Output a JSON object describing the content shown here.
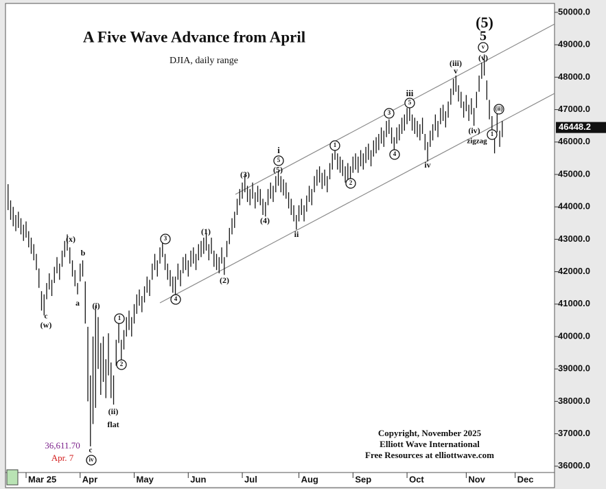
{
  "chart_data": {
    "type": "range-bar",
    "title": "A Five Wave Advance from April",
    "subtitle": "DJIA, daily range",
    "color": "#111111",
    "xlim": [
      -1,
      212.3
    ],
    "xticks": [
      {
        "value": 7,
        "label": "Mar 25"
      },
      {
        "value": 28,
        "label": "Apr"
      },
      {
        "value": 49,
        "label": "May"
      },
      {
        "value": 70,
        "label": "Jun"
      },
      {
        "value": 91,
        "label": "Jul"
      },
      {
        "value": 113,
        "label": "Aug"
      },
      {
        "value": 134,
        "label": "Sep"
      },
      {
        "value": 155,
        "label": "Oct"
      },
      {
        "value": 178,
        "label": "Nov"
      },
      {
        "value": 197,
        "label": "Dec"
      }
    ],
    "ylim": [
      35805,
      50275
    ],
    "yticks": [
      {
        "value": 36000,
        "label": "36000.0"
      },
      {
        "value": 37000,
        "label": "37000.0"
      },
      {
        "value": 38000,
        "label": "38000.0"
      },
      {
        "value": 39000,
        "label": "39000.0"
      },
      {
        "value": 40000,
        "label": "40000.0"
      },
      {
        "value": 41000,
        "label": "41000.0"
      },
      {
        "value": 42000,
        "label": "42000.0"
      },
      {
        "value": 43000,
        "label": "43000.0"
      },
      {
        "value": 44000,
        "label": "44000.0"
      },
      {
        "value": 45000,
        "label": "45000.0"
      },
      {
        "value": 46000,
        "label": "46000.0"
      },
      {
        "value": 47000,
        "label": "47000.0"
      },
      {
        "value": 48000,
        "label": "48000.0"
      },
      {
        "value": 49000,
        "label": "49000.0"
      },
      {
        "value": 50000,
        "label": "50000.0"
      }
    ],
    "last_price": 46448.2,
    "low": [
      43900,
      43600,
      43400,
      43250,
      43350,
      43150,
      42950,
      43050,
      42750,
      42550,
      42350,
      42050,
      41500,
      40800,
      40650,
      41150,
      41450,
      41250,
      41650,
      41950,
      41750,
      42150,
      42450,
      42650,
      42250,
      41850,
      41550,
      41300,
      41700,
      41850,
      40400,
      38000,
      36611.7,
      37300,
      37800,
      39000,
      38200,
      38600,
      38100,
      38800,
      38100,
      37900,
      39100,
      39800,
      39200,
      39600,
      40000,
      40200,
      40000,
      40400,
      40700,
      40950,
      40750,
      41050,
      41350,
      41250,
      41750,
      42050,
      41850,
      42250,
      42450,
      42050,
      41750,
      41550,
      41350,
      41300,
      41750,
      41550,
      41950,
      42050,
      41850,
      42150,
      42250,
      42050,
      42350,
      42450,
      42550,
      42650,
      42350,
      42550,
      42150,
      42050,
      41950,
      42250,
      41900,
      42450,
      42850,
      43150,
      43350,
      43750,
      44050,
      44250,
      44450,
      44150,
      44050,
      44250,
      43950,
      44150,
      44050,
      43750,
      43700,
      44050,
      44250,
      44150,
      44450,
      44650,
      44450,
      44350,
      44250,
      43950,
      43750,
      43550,
      43300,
      43550,
      43750,
      43550,
      43850,
      44150,
      44050,
      44450,
      44650,
      44750,
      44550,
      44650,
      44450,
      44850,
      45150,
      45450,
      45150,
      45050,
      44950,
      44750,
      44850,
      44800,
      45050,
      45150,
      45050,
      45250,
      45150,
      45350,
      45450,
      45250,
      45550,
      45650,
      45750,
      45950,
      45850,
      46150,
      46250,
      45950,
      45600,
      45950,
      46050,
      46250,
      46350,
      46550,
      46650,
      46350,
      46250,
      46150,
      46050,
      46250,
      45750,
      45400,
      45850,
      46050,
      46350,
      46150,
      46550,
      46650,
      46450,
      46750,
      47150,
      47450,
      47550,
      47250,
      47050,
      46750,
      46950,
      46650,
      46850,
      46500,
      47050,
      47550,
      47950,
      48050,
      47300,
      46700,
      46200,
      45650,
      46300,
      45850,
      46150
    ],
    "high": [
      44700,
      44200,
      44000,
      43750,
      43850,
      43650,
      43450,
      43550,
      43250,
      43050,
      42850,
      42550,
      42100,
      41400,
      41300,
      41650,
      41950,
      41750,
      42150,
      42450,
      42250,
      42650,
      42950,
      43150,
      42750,
      42350,
      42050,
      41650,
      42250,
      42350,
      41700,
      40300,
      38800,
      40000,
      40950,
      40600,
      39800,
      40000,
      39300,
      40100,
      39200,
      38800,
      39900,
      40500,
      39900,
      40200,
      40600,
      40800,
      40600,
      41000,
      41300,
      41450,
      41250,
      41550,
      41850,
      41750,
      42250,
      42550,
      42350,
      42750,
      42950,
      42550,
      42250,
      42050,
      41850,
      41850,
      42250,
      42050,
      42450,
      42550,
      42350,
      42650,
      42750,
      42550,
      42850,
      42950,
      43050,
      43200,
      42850,
      43050,
      42650,
      42550,
      42450,
      42750,
      42450,
      42950,
      43350,
      43650,
      43850,
      44250,
      44550,
      44750,
      45000,
      44650,
      44550,
      44750,
      44450,
      44650,
      44550,
      44250,
      44150,
      44550,
      44750,
      44650,
      44950,
      45100,
      44950,
      44850,
      44750,
      44450,
      44250,
      44050,
      43750,
      44050,
      44250,
      44050,
      44350,
      44650,
      44550,
      44950,
      45150,
      45250,
      45050,
      45150,
      44950,
      45350,
      45650,
      45950,
      45650,
      45550,
      45450,
      45250,
      45350,
      45250,
      45550,
      45650,
      45550,
      45750,
      45650,
      45850,
      45950,
      45750,
      46050,
      46150,
      46250,
      46450,
      46350,
      46650,
      46700,
      46450,
      46150,
      46450,
      46550,
      46750,
      46850,
      47050,
      47200,
      46850,
      46750,
      46650,
      46550,
      46750,
      46250,
      46000,
      46350,
      46550,
      46850,
      46650,
      47050,
      47150,
      46950,
      47250,
      47650,
      47950,
      48050,
      47750,
      47550,
      47250,
      47450,
      47150,
      47350,
      47050,
      47550,
      48050,
      48450,
      48700,
      47900,
      47300,
      46800,
      46200,
      46900,
      46350,
      46650
    ],
    "annotations": [
      "(5)",
      "5",
      "v",
      "(v)",
      "(iii)",
      "v",
      "iii",
      "5",
      "3",
      "4",
      "iv",
      "(iv)",
      "zigzag",
      "(ii)",
      "1",
      "1",
      "2",
      "i",
      "5",
      "(5)",
      "(3)",
      "(4)",
      "ii",
      "(1)",
      "(2)",
      "3",
      "4",
      "1",
      "2",
      "(i)",
      "(ii)",
      "flat",
      "(x)",
      "b",
      "a",
      "c",
      "(w)",
      "c",
      "iv"
    ],
    "low_value_label": "36,611.70",
    "low_date_label": "Apr. 7",
    "copyright": [
      "Copyright, November 2025",
      "Elliott Wave International",
      "Free Resources at elliottwave.com"
    ]
  }
}
